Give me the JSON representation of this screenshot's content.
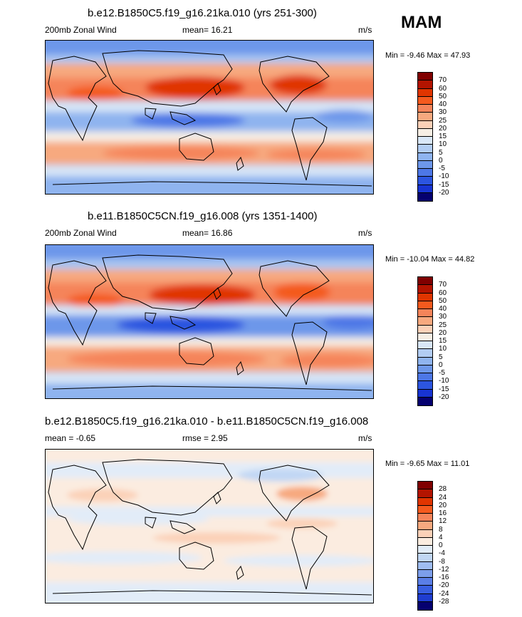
{
  "season": "MAM",
  "palette_wind": [
    "#800000",
    "#b31400",
    "#e03500",
    "#f45a1e",
    "#f5845a",
    "#f7a97f",
    "#fbd1b8",
    "#f6eee4",
    "#d9e7f7",
    "#b2cdf3",
    "#8fb4ef",
    "#6d97ea",
    "#4d77e6",
    "#2c55e0",
    "#1834d2",
    "#0f15b4",
    "#05006f"
  ],
  "palette_diff": [
    "#800000",
    "#b31400",
    "#e03500",
    "#f45a1e",
    "#f5845a",
    "#f7a97f",
    "#fbd1b8",
    "#fbece0",
    "#e2ecf8",
    "#c1d7f4",
    "#9fbdf0",
    "#7c9eea",
    "#5a7ee6",
    "#385ee0",
    "#1f3dd0",
    "#1118b4",
    "#05006f"
  ],
  "panels": [
    {
      "title": "b.e12.B1850C5.f19_g16.21ka.010 (yrs 251-300)",
      "left_label": "200mb Zonal Wind",
      "center_label": "mean=  16.21",
      "units": "m/s",
      "minmax": "Min =  -9.46 Max =  47.93",
      "labelbar": [
        "70",
        "60",
        "50",
        "40",
        "30",
        "25",
        "20",
        "15",
        "10",
        "5",
        "0",
        "-5",
        "-10",
        "-15",
        "-20"
      ]
    },
    {
      "title": "b.e11.B1850C5CN.f19_g16.008 (yrs 1351-1400)",
      "left_label": "200mb Zonal Wind",
      "center_label": "mean=  16.86",
      "units": "m/s",
      "minmax": "Min = -10.04 Max =  44.82",
      "labelbar": [
        "70",
        "60",
        "50",
        "40",
        "30",
        "25",
        "20",
        "15",
        "10",
        "5",
        "0",
        "-5",
        "-10",
        "-15",
        "-20"
      ]
    },
    {
      "title": "b.e12.B1850C5.f19_g16.21ka.010 - b.e11.B1850C5CN.f19_g16.008",
      "left_label": "mean =  -0.65",
      "center_label": "rmse =   2.95",
      "units": "m/s",
      "minmax": "Min =  -9.65 Max =  11.01",
      "labelbar": [
        "28",
        "24",
        "20",
        "16",
        "12",
        "8",
        "4",
        "0",
        "-4",
        "-8",
        "-12",
        "-16",
        "-20",
        "-24",
        "-28"
      ]
    }
  ]
}
